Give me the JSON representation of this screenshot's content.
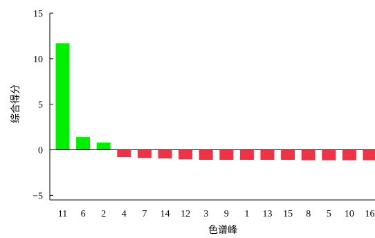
{
  "chart_data": {
    "type": "bar",
    "title": "",
    "xlabel": "色谱峰",
    "ylabel": "综合得分",
    "categories": [
      "11",
      "6",
      "2",
      "4",
      "7",
      "14",
      "12",
      "3",
      "9",
      "1",
      "13",
      "15",
      "8",
      "5",
      "10",
      "16"
    ],
    "values": [
      11.7,
      1.4,
      0.8,
      -0.8,
      -0.9,
      -0.95,
      -1.05,
      -1.1,
      -1.1,
      -1.1,
      -1.1,
      -1.1,
      -1.15,
      -1.15,
      -1.15,
      -1.15
    ],
    "ylim": [
      -5.5,
      15
    ],
    "yticks": [
      15,
      10,
      5,
      0,
      -5
    ],
    "ytick_labels": [
      "15",
      "10",
      "5",
      "0",
      "−5"
    ],
    "grid": false,
    "colors": {
      "positive": "#00ee00",
      "negative": "#ee3344"
    }
  }
}
